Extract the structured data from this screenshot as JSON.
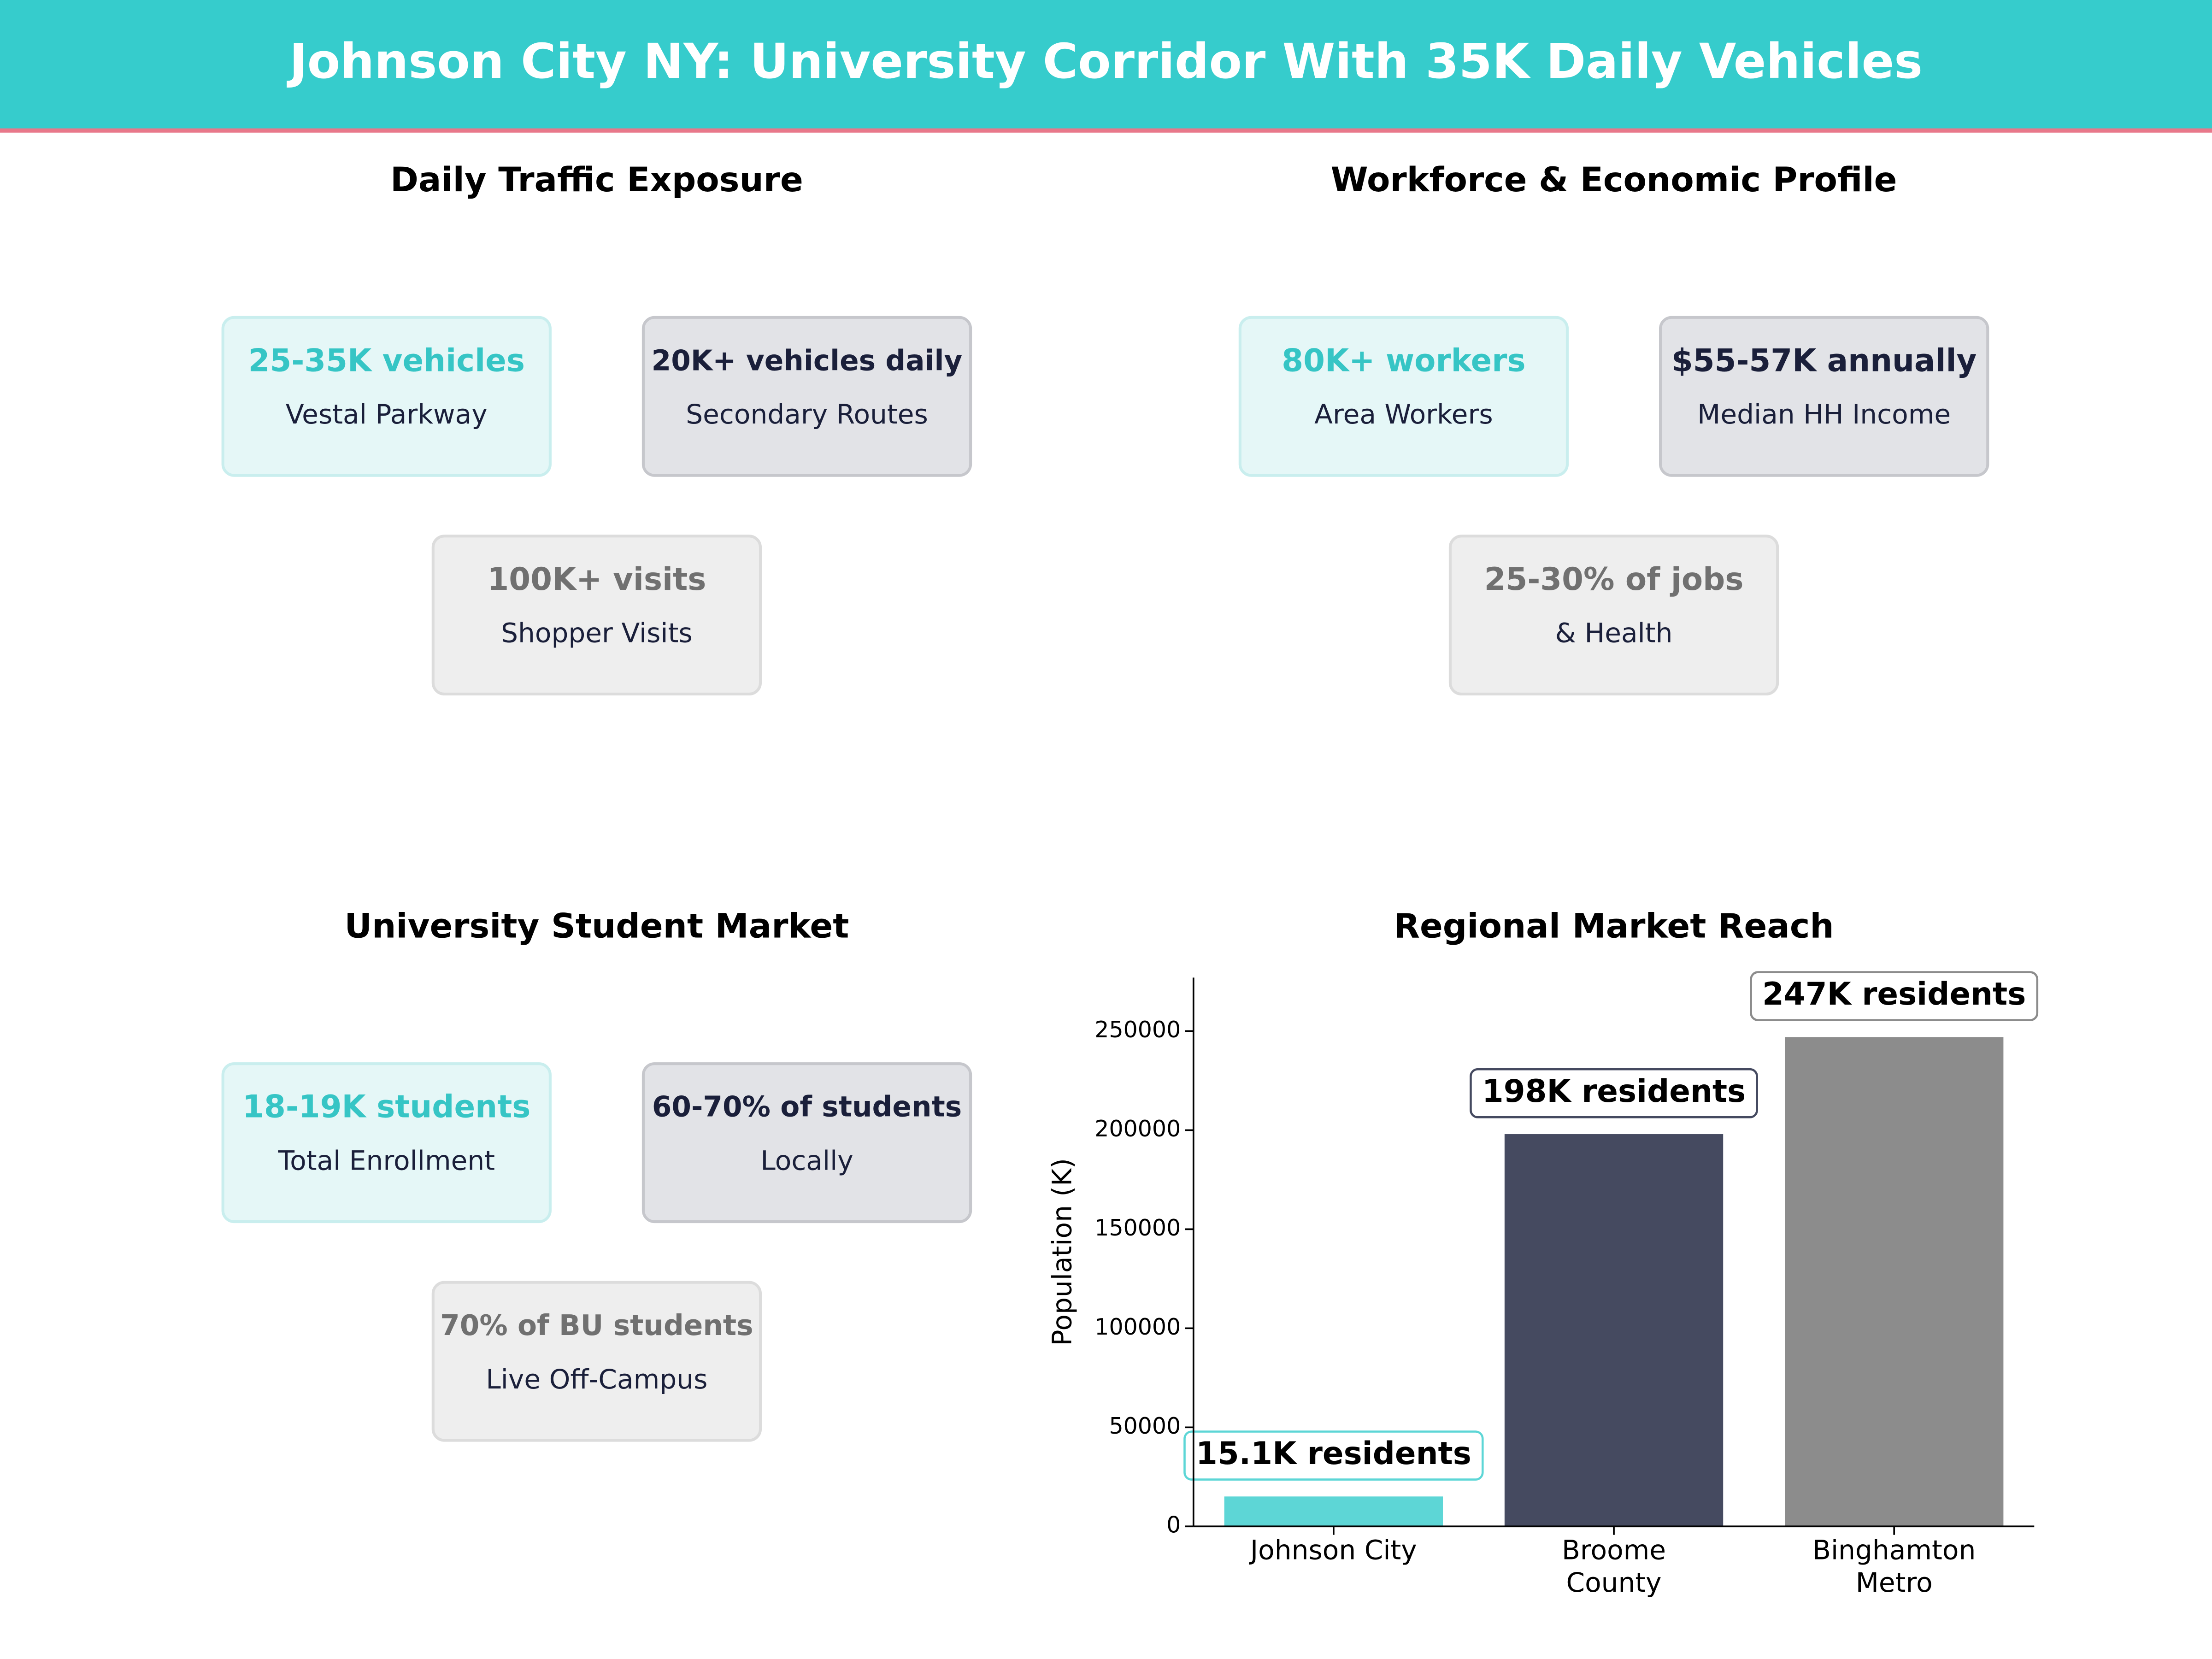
{
  "header": {
    "title": "Johnson City NY: University Corridor With 35K Daily Vehicles"
  },
  "panels": [
    {
      "title": "Daily Traffic Exposure",
      "cards": [
        {
          "value": "25-35K vehicles",
          "label": "Vestal Parkway"
        },
        {
          "value": "20K+ vehicles daily",
          "label": "Secondary Routes"
        },
        {
          "value": "100K+ visits",
          "label": "Shopper Visits"
        }
      ]
    },
    {
      "title": "Workforce & Economic Profile",
      "cards": [
        {
          "value": "80K+ workers",
          "label": "Area Workers"
        },
        {
          "value": "$55-57K annually",
          "label": "Median HH Income"
        },
        {
          "value": "25-30% of jobs",
          "label": "& Health"
        }
      ]
    },
    {
      "title": "University Student Market",
      "cards": [
        {
          "value": "18-19K students",
          "label": "Total Enrollment"
        },
        {
          "value": "60-70% of students",
          "label": "Locally"
        },
        {
          "value": "70% of BU students",
          "label": "Live Off-Campus"
        }
      ]
    }
  ],
  "chart_data": {
    "type": "bar",
    "title": "Regional Market Reach",
    "y_label": "Population (K)",
    "categories": [
      "Johnson City",
      "Broome\nCounty",
      "Binghamton\nMetro"
    ],
    "values": [
      15100,
      198000,
      247000
    ],
    "value_labels": [
      "15.1K residents",
      "198K residents",
      "247K residents"
    ],
    "colors": [
      "#5dd6d6",
      "#454a60",
      "#8c8c8c"
    ],
    "ylim": [
      0,
      277000
    ],
    "yticks": [
      0,
      50000,
      100000,
      150000,
      200000,
      250000
    ]
  }
}
